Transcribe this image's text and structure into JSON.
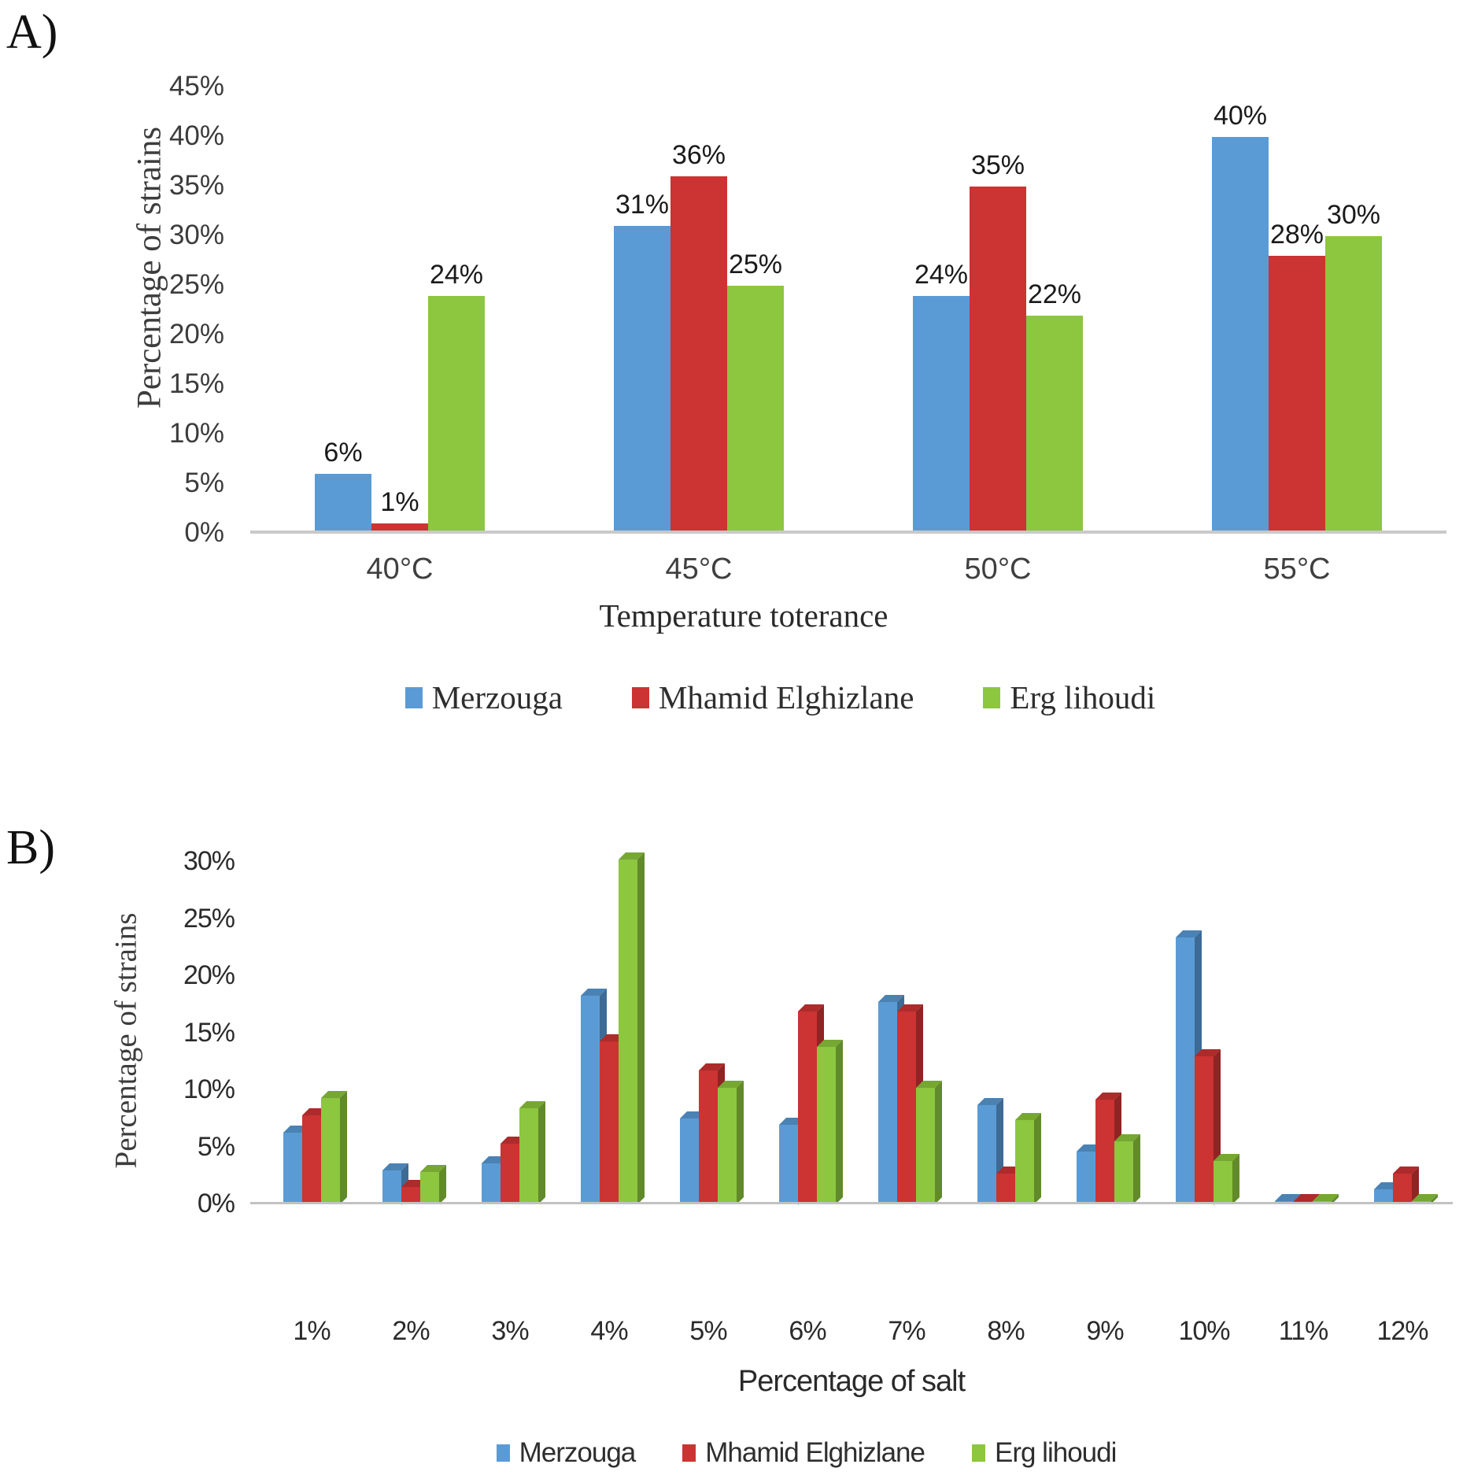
{
  "panels": {
    "a_tag": "A)",
    "b_tag": "B)"
  },
  "colors": {
    "blue": "#5B9BD5",
    "red": "#CC3333",
    "green": "#8DC63F",
    "blue_top": "#4A82B4",
    "blue_side": "#3D6B96",
    "red_top": "#AD2B2B",
    "red_side": "#8F2424",
    "green_top": "#76A733",
    "green_side": "#618A2A",
    "axis_line": "#c9c9c9"
  },
  "chart_data": [
    {
      "type": "bar",
      "panel": "A",
      "categories": [
        "40°C",
        "45°C",
        "50°C",
        "55°C"
      ],
      "series": [
        {
          "name": "Merzouga",
          "color": "#5B9BD5",
          "values": [
            6,
            31,
            24,
            40
          ]
        },
        {
          "name": "Mhamid Elghizlane",
          "color": "#CC3333",
          "values": [
            1,
            36,
            35,
            28
          ]
        },
        {
          "name": "Erg lihoudi",
          "color": "#8DC63F",
          "values": [
            24,
            25,
            22,
            30
          ]
        }
      ],
      "data_labels": [
        [
          "6%",
          "31%",
          "24%",
          "40%"
        ],
        [
          "1%",
          "36%",
          "35%",
          "28%"
        ],
        [
          "24%",
          "25%",
          "22%",
          "30%"
        ]
      ],
      "xlabel": "Temperature toterance",
      "ylabel": "Percentage of strains",
      "ylim": [
        0,
        45
      ],
      "ytick_step": 5,
      "ytick_labels": [
        "0%",
        "5%",
        "10%",
        "15%",
        "20%",
        "25%",
        "30%",
        "35%",
        "40%",
        "45%"
      ],
      "grid": false,
      "legend_position": "bottom"
    },
    {
      "type": "bar-3d",
      "panel": "B",
      "categories": [
        "1%",
        "2%",
        "3%",
        "4%",
        "5%",
        "6%",
        "7%",
        "8%",
        "9%",
        "10%",
        "11%",
        "12%"
      ],
      "series": [
        {
          "name": "Merzouga",
          "color": "#5B9BD5",
          "values": [
            6.3,
            3.0,
            3.6,
            18.3,
            7.5,
            7.0,
            17.7,
            8.7,
            4.6,
            23.4,
            0.3,
            1.3
          ]
        },
        {
          "name": "Mhamid Elghizlane",
          "color": "#CC3333",
          "values": [
            7.8,
            1.5,
            5.3,
            14.3,
            11.7,
            16.9,
            16.9,
            2.7,
            9.2,
            13.0,
            0.3,
            2.7
          ]
        },
        {
          "name": "Erg lihoudi",
          "color": "#8DC63F",
          "values": [
            9.3,
            2.8,
            8.4,
            30.2,
            10.2,
            13.8,
            10.2,
            7.4,
            5.5,
            3.8,
            0.3,
            0.3
          ]
        }
      ],
      "xlabel": "Percentage of salt",
      "ylabel": "Percentage of strains",
      "ylim": [
        0,
        30
      ],
      "ytick_step": 5,
      "ytick_labels": [
        "0%",
        "5%",
        "10%",
        "15%",
        "20%",
        "25%",
        "30%"
      ],
      "grid": false,
      "legend_position": "bottom",
      "data_labels": false
    }
  ]
}
